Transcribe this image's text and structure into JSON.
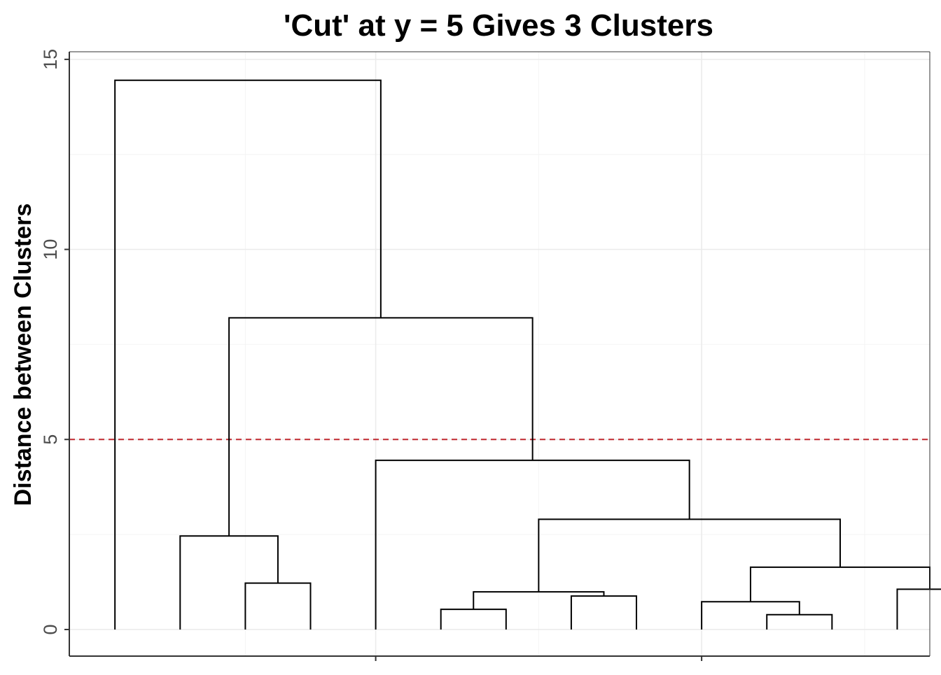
{
  "chart_data": {
    "type": "dendrogram",
    "title": "'Cut' at y = 5 Gives 3 Clusters",
    "xlabel": "",
    "ylabel": "Distance between Clusters",
    "ylim": [
      -0.7,
      15.2
    ],
    "xlim": [
      0.3,
      13.5
    ],
    "y_ticks": [
      0,
      5,
      10,
      15
    ],
    "y_tick_labels": [
      "0",
      "5",
      "10",
      "15"
    ],
    "x_tick_positions": [
      5,
      10
    ],
    "x_tick_labels": [
      "",
      ""
    ],
    "grid": true,
    "colors": {
      "branch": "#000000",
      "cut_line": "#c0282f",
      "grid_major": "#ebebeb",
      "grid_minor": "#f4f4f4",
      "axis": "#333333",
      "tick_label": "#4d4d4d"
    },
    "cut_line": {
      "y": 5,
      "style": "dashed",
      "clusters": 3
    },
    "leaves": [
      1,
      2,
      3,
      4,
      5,
      6,
      7,
      8,
      9,
      10,
      11,
      12,
      13,
      14
    ],
    "merges": [
      {
        "left": 11,
        "right": 12,
        "height": 0.39
      },
      {
        "left": 6,
        "right": 7,
        "height": 0.53
      },
      {
        "left": 10,
        "right": 11.5,
        "height": 0.73
      },
      {
        "left": 8,
        "right": 9,
        "height": 0.88
      },
      {
        "left": 6.5,
        "right": 8.5,
        "height": 0.99
      },
      {
        "left": 13,
        "right": 14,
        "height": 1.06
      },
      {
        "left": 3,
        "right": 4,
        "height": 1.22
      },
      {
        "left": 10.75,
        "right": 13.5,
        "height": 1.64
      },
      {
        "left": 2,
        "right": 3.5,
        "height": 2.46
      },
      {
        "left": 7.5,
        "right": 12.125,
        "height": 2.9
      },
      {
        "left": 5,
        "right": 9.8125,
        "height": 4.45
      },
      {
        "left": 2.75,
        "right": 7.40625,
        "height": 8.2
      },
      {
        "left": 1,
        "right": 5.078125,
        "height": 14.45
      }
    ]
  }
}
